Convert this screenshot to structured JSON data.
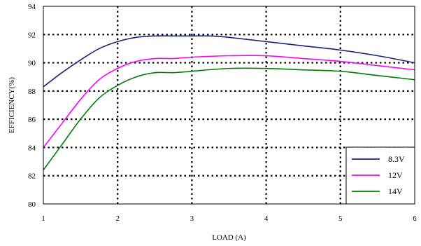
{
  "chart_data": {
    "type": "line",
    "title": "",
    "xlabel": "LOAD (A)",
    "ylabel": "EFFICIENCY(%)",
    "xlim": [
      1,
      6
    ],
    "ylim": [
      80,
      94
    ],
    "xticks": [
      1,
      2,
      3,
      4,
      5,
      6
    ],
    "yticks": [
      80,
      82,
      84,
      86,
      88,
      90,
      92,
      94
    ],
    "grid": true,
    "grid_style": "dotted",
    "legend_position": "bottom-right",
    "series": [
      {
        "name": "8.3V",
        "color": "#1a237e",
        "x": [
          1,
          1.25,
          1.5,
          1.75,
          2,
          2.25,
          2.5,
          2.75,
          3,
          3.25,
          3.5,
          4,
          4.5,
          5,
          5.5,
          6
        ],
        "y": [
          88.3,
          89.3,
          90.2,
          91.0,
          91.5,
          91.8,
          91.9,
          91.9,
          91.9,
          91.9,
          91.8,
          91.5,
          91.2,
          90.9,
          90.5,
          90.0
        ]
      },
      {
        "name": "12V",
        "color": "#ff00ff",
        "x": [
          1,
          1.25,
          1.5,
          1.75,
          2,
          2.25,
          2.5,
          2.75,
          3,
          3.5,
          4,
          4.5,
          5,
          5.5,
          6
        ],
        "y": [
          84.0,
          85.7,
          87.4,
          88.8,
          89.6,
          90.1,
          90.3,
          90.3,
          90.4,
          90.5,
          90.5,
          90.3,
          90.1,
          89.8,
          89.5
        ]
      },
      {
        "name": "14V",
        "color": "#008000",
        "x": [
          1,
          1.25,
          1.5,
          1.75,
          2,
          2.25,
          2.5,
          2.75,
          3,
          3.5,
          4,
          4.5,
          5,
          5.5,
          6
        ],
        "y": [
          82.4,
          84.2,
          86.0,
          87.5,
          88.4,
          89.0,
          89.3,
          89.3,
          89.4,
          89.6,
          89.6,
          89.5,
          89.4,
          89.1,
          88.8
        ]
      }
    ]
  }
}
